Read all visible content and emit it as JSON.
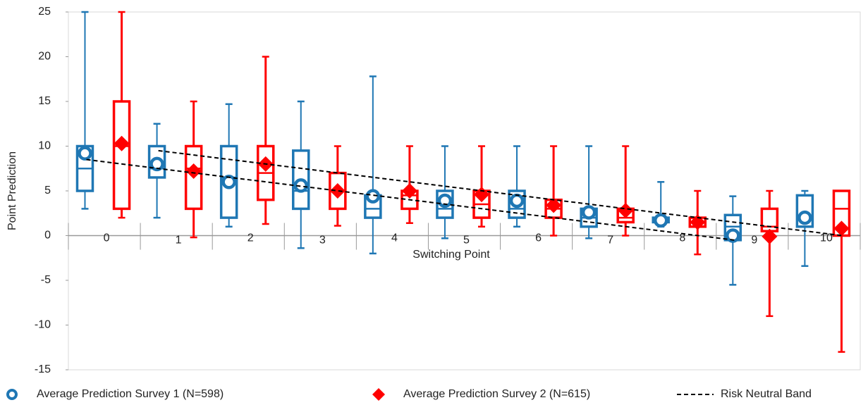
{
  "chart_data": {
    "type": "box",
    "x_label": "Switching Point",
    "y_label": "Point Prediction",
    "categories": [
      "0",
      "1",
      "2",
      "3",
      "4",
      "5",
      "6",
      "7",
      "8",
      "9",
      "10"
    ],
    "ylim": [
      -15,
      25
    ],
    "yticks": [
      -15,
      -10,
      -5,
      0,
      5,
      10,
      15,
      20,
      25
    ],
    "series": [
      {
        "name": "Average Prediction Survey 1 (N=598)",
        "color": "#1f77b4",
        "marker": "circle",
        "min": [
          3,
          2,
          1,
          -1.4,
          -2,
          -0.3,
          1,
          -0.3,
          1,
          -5.5,
          -3.4
        ],
        "q1": [
          5,
          6.5,
          2,
          3,
          2,
          2,
          2,
          1,
          1.5,
          -0.5,
          1
        ],
        "median": [
          7.5,
          7.5,
          6.5,
          5,
          3,
          3,
          3,
          2,
          2,
          1,
          2
        ],
        "q3": [
          10,
          10,
          10,
          9.5,
          4.5,
          5,
          5,
          3,
          2,
          2.3,
          4.5
        ],
        "max": [
          25,
          12.5,
          14.7,
          15,
          17.8,
          10,
          10,
          10,
          6,
          4.4,
          5
        ],
        "mean": [
          9.2,
          8,
          6,
          5.6,
          4.4,
          3.9,
          3.9,
          2.6,
          1.7,
          0,
          2
        ]
      },
      {
        "name": "Average Prediction Survey 2 (N=615)",
        "color": "#ff0000",
        "marker": "diamond",
        "min": [
          2,
          -0.2,
          1.3,
          1.1,
          1.4,
          1,
          0,
          0,
          -2.1,
          -9,
          -13
        ],
        "q1": [
          3,
          3,
          4,
          3,
          3,
          2,
          2,
          1.5,
          1,
          0.5,
          0
        ],
        "median": [
          10,
          7.5,
          7,
          5,
          4.5,
          3.5,
          3,
          2,
          1.5,
          1,
          3
        ],
        "q3": [
          15,
          10,
          10,
          7,
          5,
          5,
          4,
          3,
          2,
          3,
          5
        ],
        "max": [
          25,
          15,
          20,
          10,
          10,
          10,
          10,
          10,
          5,
          5,
          5
        ],
        "mean": [
          10.3,
          7.2,
          8,
          5,
          5,
          4.6,
          3.4,
          2.8,
          1.5,
          -0.1,
          0.8
        ]
      }
    ],
    "band": {
      "name": "Risk Neutral Band",
      "color": "#000000",
      "lines": [
        {
          "x": [
            -0.25,
            8.75
          ],
          "y": [
            8.5,
            -0.5
          ]
        },
        {
          "x": [
            0.75,
            10.25
          ],
          "y": [
            9.5,
            0
          ]
        }
      ]
    }
  }
}
